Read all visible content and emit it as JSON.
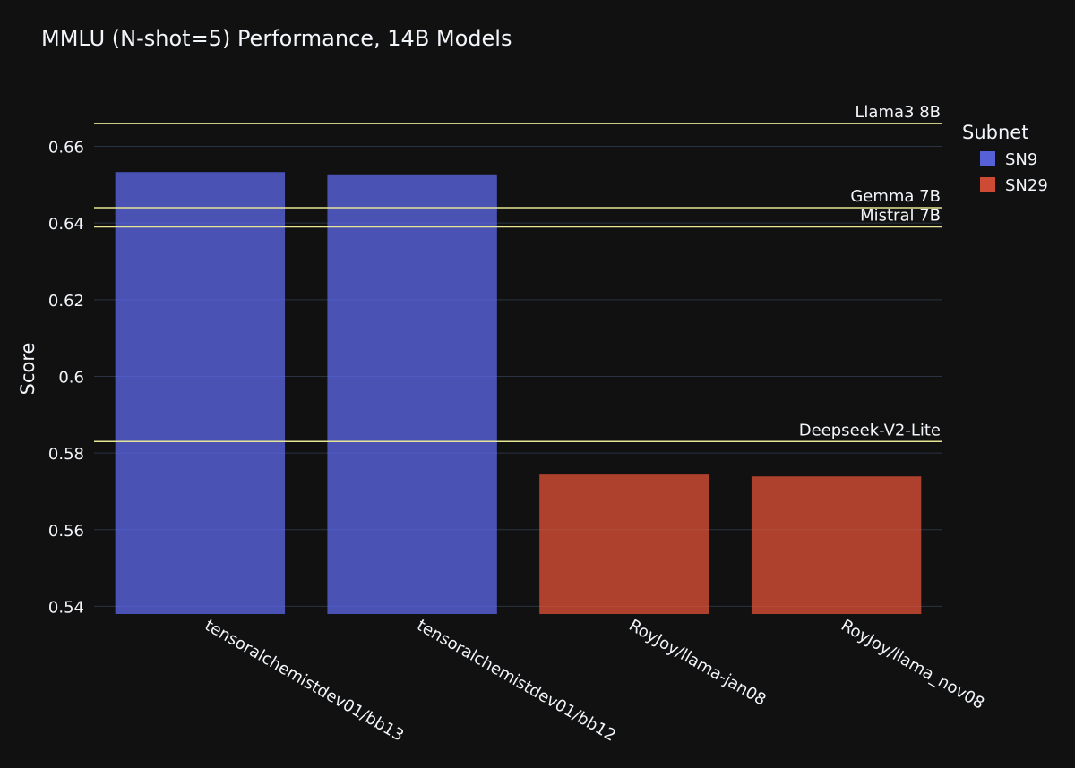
{
  "chart_data": {
    "type": "bar",
    "title": "MMLU (N-shot=5) Performance, 14B Models",
    "xlabel": "",
    "ylabel": "Score",
    "ylim": [
      0.538,
      0.6725
    ],
    "yticks": [
      0.54,
      0.56,
      0.58,
      0.6,
      0.62,
      0.64,
      0.66
    ],
    "ytick_labels": [
      "0.54",
      "0.56",
      "0.58",
      "0.6",
      "0.62",
      "0.64",
      "0.66"
    ],
    "grid": true,
    "legend_title": "Subnet",
    "legend_position": "top-right",
    "categories": [
      "tensoralchemistdev01/bb13",
      "tensoralchemistdev01/bb12",
      "RoyJoy/llama-jan08",
      "RoyJoy/llama_nov08"
    ],
    "series": [
      {
        "name": "SN9",
        "color": "#636efa",
        "values": [
          0.6533,
          0.6527,
          null,
          null
        ]
      },
      {
        "name": "SN29",
        "color": "#ef553b",
        "values": [
          null,
          null,
          0.5744,
          0.5739
        ]
      }
    ],
    "reference_lines": [
      {
        "label": "Llama3 8B",
        "value": 0.666
      },
      {
        "label": "Gemma 7B",
        "value": 0.644
      },
      {
        "label": "Mistral 7B",
        "value": 0.639
      },
      {
        "label": "Deepseek-V2-Lite",
        "value": 0.583
      }
    ],
    "colors": {
      "background": "#111111",
      "grid": "#283442",
      "text": "#f2f5fa",
      "reference_line": "#e6e694"
    }
  }
}
